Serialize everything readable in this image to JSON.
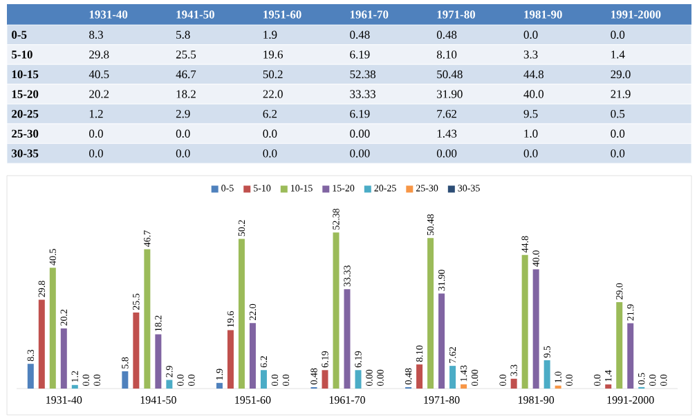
{
  "chart_data": {
    "type": "bar",
    "categories": [
      "1931-40",
      "1941-50",
      "1951-60",
      "1961-70",
      "1971-80",
      "1981-90",
      "1991-2000"
    ],
    "legend": "top",
    "series": [
      {
        "name": "0-5",
        "color": "#4f81bd",
        "values": [
          8.3,
          5.8,
          1.9,
          0.48,
          0.48,
          0.0,
          0.0
        ],
        "value_labels": [
          "8.3",
          "5.8",
          "1.9",
          "0.48",
          "0.48",
          "0.0",
          "0.0"
        ]
      },
      {
        "name": "5-10",
        "color": "#c0504d",
        "values": [
          29.8,
          25.5,
          19.6,
          6.19,
          8.1,
          3.3,
          1.4
        ],
        "value_labels": [
          "29.8",
          "25.5",
          "19.6",
          "6.19",
          "8.10",
          "3.3",
          "1.4"
        ]
      },
      {
        "name": "10-15",
        "color": "#9bbb59",
        "values": [
          40.5,
          46.7,
          50.2,
          52.38,
          50.48,
          44.8,
          29.0
        ],
        "value_labels": [
          "40.5",
          "46.7",
          "50.2",
          "52.38",
          "50.48",
          "44.8",
          "29.0"
        ]
      },
      {
        "name": "15-20",
        "color": "#8064a2",
        "values": [
          20.2,
          18.2,
          22.0,
          33.33,
          31.9,
          40.0,
          21.9
        ],
        "value_labels": [
          "20.2",
          "18.2",
          "22.0",
          "33.33",
          "31.90",
          "40.0",
          "21.9"
        ]
      },
      {
        "name": "20-25",
        "color": "#4bacc6",
        "values": [
          1.2,
          2.9,
          6.2,
          6.19,
          7.62,
          9.5,
          0.5
        ],
        "value_labels": [
          "1.2",
          "2.9",
          "6.2",
          "6.19",
          "7.62",
          "9.5",
          "0.5"
        ]
      },
      {
        "name": "25-30",
        "color": "#f79646",
        "values": [
          0.0,
          0.0,
          0.0,
          0.0,
          1.43,
          1.0,
          0.0
        ],
        "value_labels": [
          "0.0",
          "0.0",
          "0.0",
          "0.00",
          "1.43",
          "1.0",
          "0.0"
        ]
      },
      {
        "name": "30-35",
        "color": "#2c4d75",
        "values": [
          0.0,
          0.0,
          0.0,
          0.0,
          0.0,
          0.0,
          0.0
        ],
        "value_labels": [
          "0.0",
          "0.0",
          "0.0",
          "0.00",
          "0.00",
          "0.0",
          "0.0"
        ]
      }
    ]
  }
}
